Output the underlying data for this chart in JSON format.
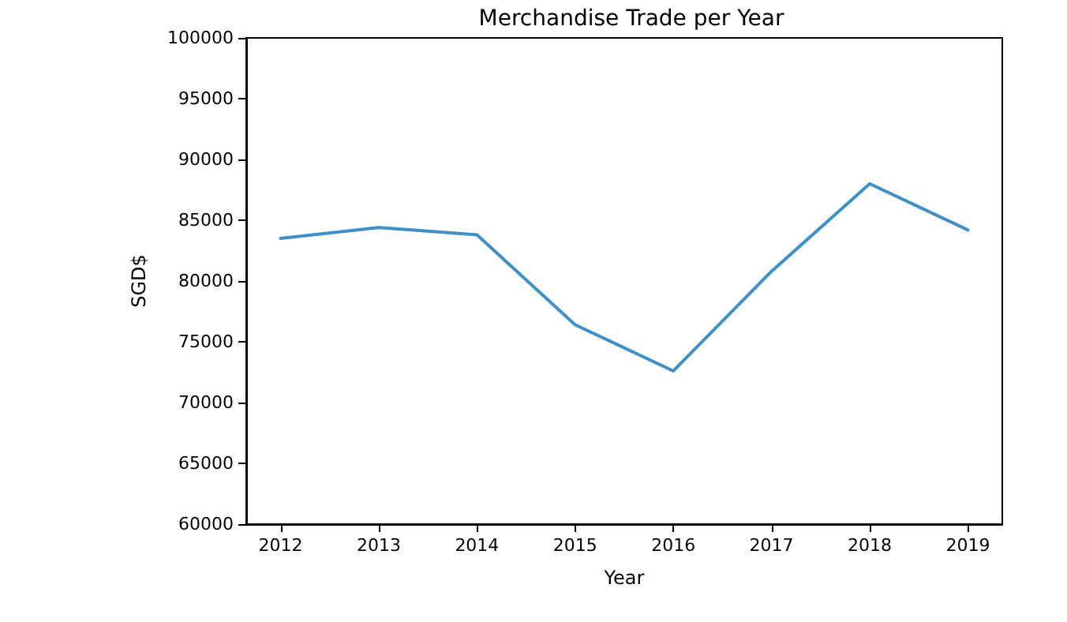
{
  "chart_data": {
    "type": "line",
    "title": "Merchandise Trade per Year",
    "xlabel": "Year",
    "ylabel": "SGD$",
    "x": [
      2012,
      2013,
      2014,
      2015,
      2016,
      2017,
      2018,
      2019
    ],
    "series": [
      {
        "color": "#3f8fc9",
        "values": [
          83500,
          84400,
          83800,
          76400,
          72600,
          80800,
          88000,
          84200
        ]
      }
    ],
    "xlim": [
      2011.65,
      2019.35
    ],
    "xticks": [
      2012,
      2013,
      2014,
      2015,
      2016,
      2017,
      2018,
      2019
    ],
    "ylim": [
      60000,
      100000
    ],
    "yticks": [
      60000,
      65000,
      70000,
      75000,
      80000,
      85000,
      90000,
      95000,
      100000
    ],
    "grid": false,
    "marker": "none",
    "line_style": "solid"
  }
}
